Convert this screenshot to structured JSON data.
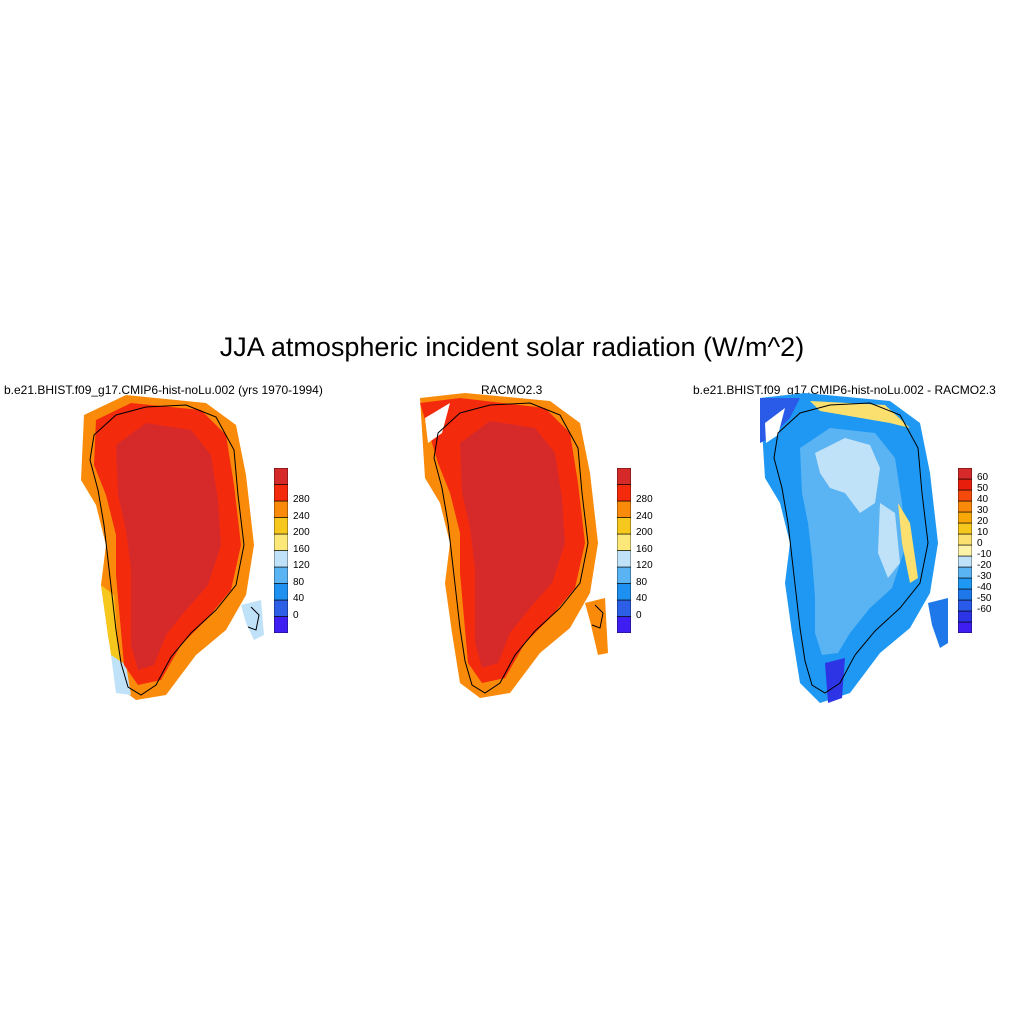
{
  "title": "JJA atmospheric incident solar radiation (W/m^2)",
  "panels": [
    {
      "title": "b.e21.BHIST.f09_g17.CMIP6-hist-noLu.002 (yrs 1970-1994)",
      "colorbar": {
        "colors": [
          "#3f1ef2",
          "#2c5fe6",
          "#1e90f0",
          "#5ab4f4",
          "#c0e2f8",
          "#fbe878",
          "#f6c71c",
          "#f98a0a",
          "#f42a0c",
          "#d62a2a"
        ],
        "labels": [
          "0",
          "40",
          "80",
          "120",
          "160",
          "200",
          "240",
          "280"
        ]
      }
    },
    {
      "title": "RACMO2.3",
      "colorbar": {
        "colors": [
          "#3f1ef2",
          "#2c5fe6",
          "#1e90f0",
          "#5ab4f4",
          "#c0e2f8",
          "#fbe878",
          "#f6c71c",
          "#f98a0a",
          "#f42a0c",
          "#d62a2a"
        ],
        "labels": [
          "0",
          "40",
          "80",
          "120",
          "160",
          "200",
          "240",
          "280"
        ]
      }
    },
    {
      "title": "b.e21.BHIST.f09_g17.CMIP6-hist-noLu.002 - RACMO2.3",
      "colorbar": {
        "colors": [
          "#3f1ef2",
          "#2c34e6",
          "#2a5ae8",
          "#1e78ea",
          "#1e98f2",
          "#5ab4f4",
          "#c0e2f8",
          "#fdf3a8",
          "#fbe070",
          "#f6c71c",
          "#f9a80a",
          "#f98a0a",
          "#f44a0c",
          "#e81e0c",
          "#d62a2a"
        ],
        "labels": [
          "60",
          "50",
          "40",
          "30",
          "20",
          "10",
          "0",
          "-10",
          "-20",
          "-30",
          "-40",
          "-50",
          "-60"
        ]
      }
    }
  ]
}
